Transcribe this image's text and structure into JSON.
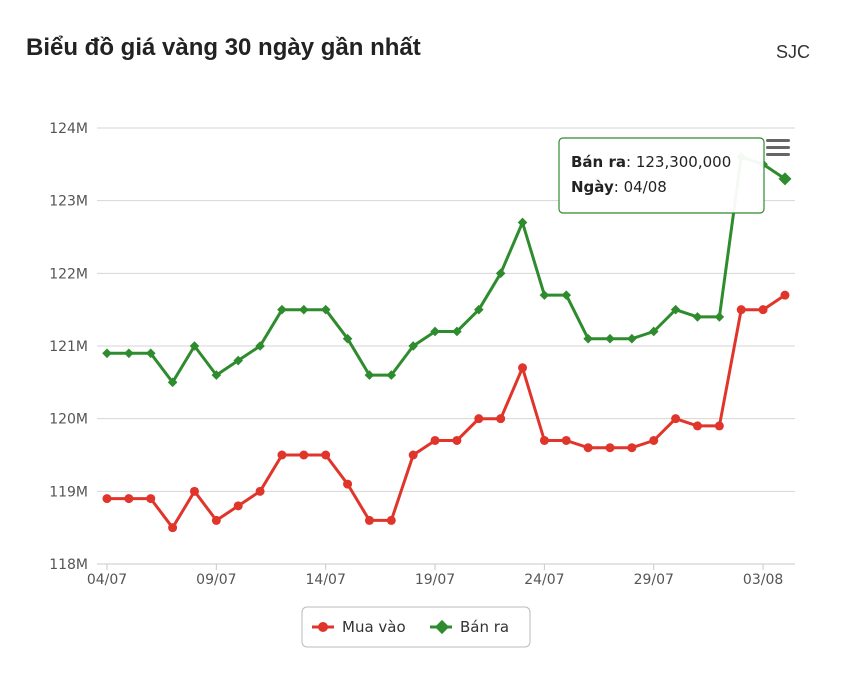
{
  "header": {
    "title": "Biểu đồ giá vàng 30 ngày gần nhất",
    "brand": "SJC"
  },
  "tooltip": {
    "series_label": "Bán ra",
    "value_text": "123,300,000",
    "date_label": "Ngày",
    "date_value": "04/08"
  },
  "colors": {
    "buy": "#e0352b",
    "sell": "#2e8b2e",
    "grid": "#d6d6d6",
    "axis_text": "#555555"
  },
  "icons": {
    "menu": "hamburger-menu-icon"
  },
  "chart_data": {
    "type": "line",
    "x_tick_labels": [
      "04/07",
      "09/07",
      "14/07",
      "19/07",
      "24/07",
      "29/07",
      "03/08"
    ],
    "y_tick_labels": [
      "118M",
      "119M",
      "120M",
      "121M",
      "122M",
      "123M",
      "124M"
    ],
    "ylim": [
      118,
      124
    ],
    "grid": true,
    "legend_position": "bottom-center",
    "dates": [
      "04/07",
      "05/07",
      "06/07",
      "07/07",
      "08/07",
      "09/07",
      "10/07",
      "11/07",
      "12/07",
      "13/07",
      "14/07",
      "15/07",
      "16/07",
      "17/07",
      "18/07",
      "19/07",
      "20/07",
      "21/07",
      "22/07",
      "23/07",
      "24/07",
      "25/07",
      "26/07",
      "27/07",
      "28/07",
      "29/07",
      "30/07",
      "31/07",
      "01/08",
      "02/08",
      "03/08",
      "04/08"
    ],
    "series": [
      {
        "name": "Mua vào",
        "color": "#e0352b",
        "marker": "circle",
        "values": [
          118.9,
          118.9,
          118.9,
          118.5,
          119.0,
          118.6,
          118.8,
          119.0,
          119.5,
          119.5,
          119.5,
          119.1,
          118.6,
          118.6,
          119.5,
          119.7,
          119.7,
          120.0,
          120.0,
          120.7,
          119.7,
          119.7,
          119.6,
          119.6,
          119.6,
          119.7,
          120.0,
          119.9,
          119.9,
          121.5,
          121.5,
          121.7
        ]
      },
      {
        "name": "Bán ra",
        "color": "#2e8b2e",
        "marker": "diamond",
        "values": [
          120.9,
          120.9,
          120.9,
          120.5,
          121.0,
          120.6,
          120.8,
          121.0,
          121.5,
          121.5,
          121.5,
          121.1,
          120.6,
          120.6,
          121.0,
          121.2,
          121.2,
          121.5,
          122.0,
          122.7,
          121.7,
          121.7,
          121.1,
          121.1,
          121.1,
          121.2,
          121.5,
          121.4,
          121.4,
          123.6,
          123.5,
          123.3
        ]
      }
    ]
  }
}
